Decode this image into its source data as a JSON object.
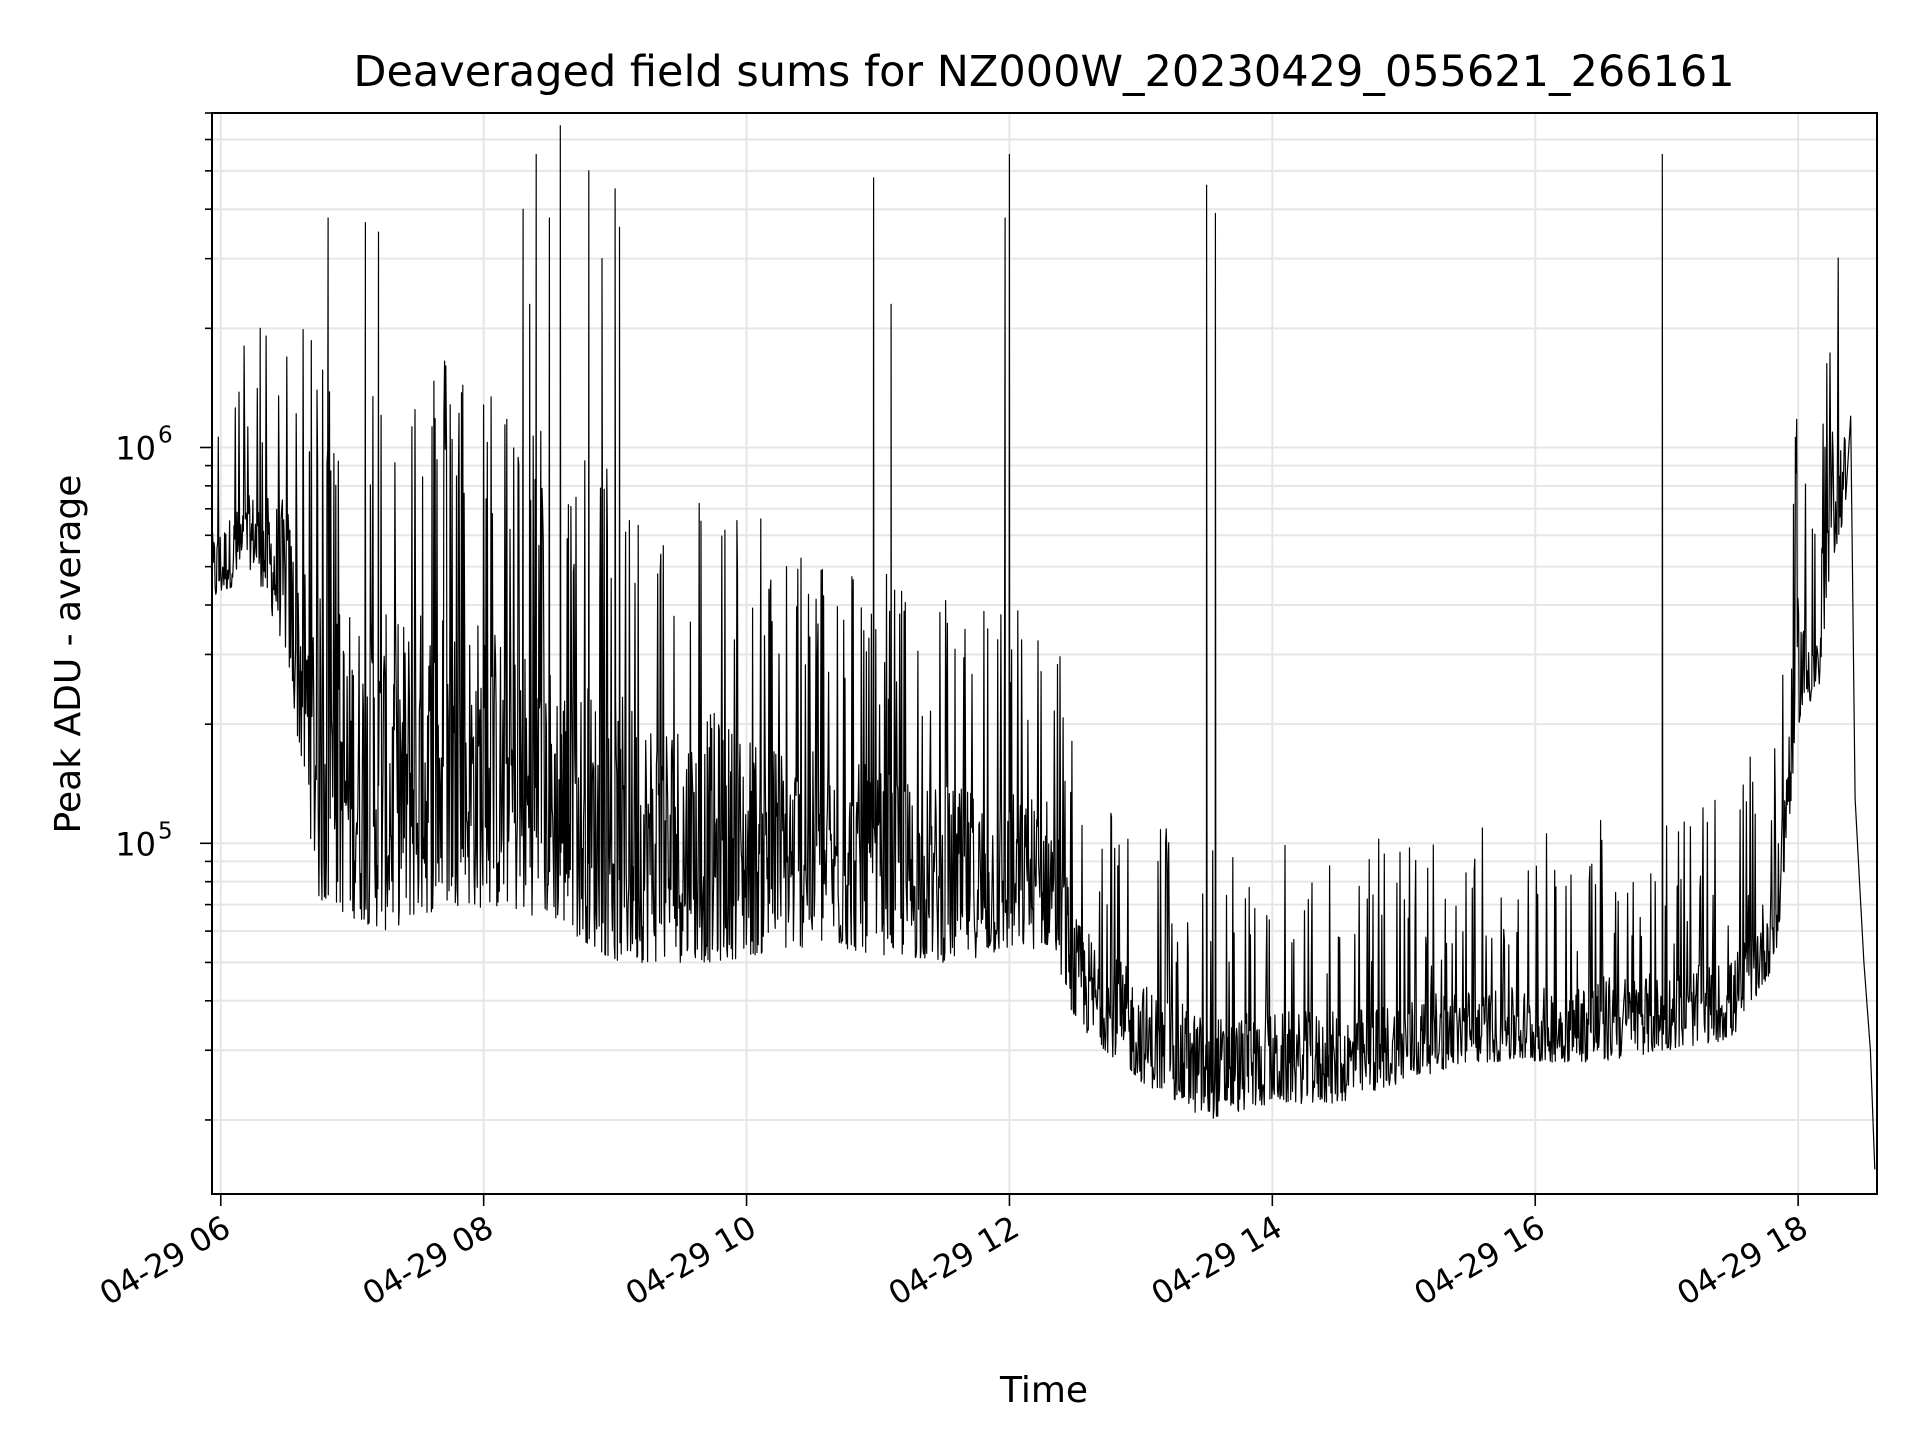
{
  "chart_data": {
    "type": "line",
    "title": "Deaveraged field sums for NZ000W_20230429_055621_266161",
    "xlabel": "Time",
    "ylabel": "Peak ADU - average",
    "yscale": "log",
    "grid": true,
    "xlim": [
      "2023-04-29 05:56",
      "2023-04-29 18:36"
    ],
    "ylim": [
      13000,
      7000000
    ],
    "x_ticks": [
      {
        "value": "2023-04-29 06:00",
        "label": "04-29 06"
      },
      {
        "value": "2023-04-29 08:00",
        "label": "04-29 08"
      },
      {
        "value": "2023-04-29 10:00",
        "label": "04-29 10"
      },
      {
        "value": "2023-04-29 12:00",
        "label": "04-29 12"
      },
      {
        "value": "2023-04-29 14:00",
        "label": "04-29 14"
      },
      {
        "value": "2023-04-29 16:00",
        "label": "04-29 16"
      },
      {
        "value": "2023-04-29 18:00",
        "label": "04-29 18"
      }
    ],
    "y_ticks": [
      {
        "value": 100000,
        "base": "10",
        "exp": "5"
      },
      {
        "value": 1000000,
        "base": "10",
        "exp": "6"
      }
    ],
    "series": [
      {
        "color": "#000000",
        "envelope": [
          {
            "t": "2023-04-29 05:56",
            "low": 400000,
            "high": 700000
          },
          {
            "t": "2023-04-29 06:15",
            "low": 500000,
            "high": 900000
          },
          {
            "t": "2023-04-29 06:30",
            "low": 300000,
            "high": 1000000
          },
          {
            "t": "2023-04-29 06:45",
            "low": 70000,
            "high": 800000
          },
          {
            "t": "2023-04-29 07:15",
            "low": 60000,
            "high": 700000
          },
          {
            "t": "2023-04-29 07:45",
            "low": 70000,
            "high": 800000
          },
          {
            "t": "2023-04-29 08:30",
            "low": 65000,
            "high": 500000
          },
          {
            "t": "2023-04-29 09:00",
            "low": 50000,
            "high": 400000
          },
          {
            "t": "2023-04-29 09:45",
            "low": 50000,
            "high": 350000
          },
          {
            "t": "2023-04-29 10:30",
            "low": 55000,
            "high": 250000
          },
          {
            "t": "2023-04-29 11:30",
            "low": 50000,
            "high": 200000
          },
          {
            "t": "2023-04-29 12:20",
            "low": 55000,
            "high": 180000
          },
          {
            "t": "2023-04-29 12:30",
            "low": 35000,
            "high": 80000
          },
          {
            "t": "2023-04-29 13:00",
            "low": 25000,
            "high": 55000
          },
          {
            "t": "2023-04-29 13:30",
            "low": 20000,
            "high": 45000
          },
          {
            "t": "2023-04-29 14:00",
            "low": 22000,
            "high": 45000
          },
          {
            "t": "2023-04-29 14:30",
            "low": 22000,
            "high": 45000
          },
          {
            "t": "2023-04-29 15:00",
            "low": 25000,
            "high": 48000
          },
          {
            "t": "2023-04-29 15:30",
            "low": 28000,
            "high": 50000
          },
          {
            "t": "2023-04-29 16:00",
            "low": 28000,
            "high": 50000
          },
          {
            "t": "2023-04-29 16:30",
            "low": 28000,
            "high": 55000
          },
          {
            "t": "2023-04-29 17:00",
            "low": 30000,
            "high": 55000
          },
          {
            "t": "2023-04-29 17:30",
            "low": 32000,
            "high": 60000
          },
          {
            "t": "2023-04-29 17:50",
            "low": 50000,
            "high": 100000
          },
          {
            "t": "2023-04-29 18:00",
            "low": 200000,
            "high": 600000
          },
          {
            "t": "2023-04-29 18:10",
            "low": 250000,
            "high": 350000
          },
          {
            "t": "2023-04-29 18:15",
            "low": 500000,
            "high": 1500000
          },
          {
            "t": "2023-04-29 18:22",
            "low": 700000,
            "high": 1300000
          }
        ],
        "tail": [
          {
            "t": "2023-04-29 18:24",
            "y": 1200000
          },
          {
            "t": "2023-04-29 18:26",
            "y": 130000
          },
          {
            "t": "2023-04-29 18:28",
            "y": 80000
          },
          {
            "t": "2023-04-29 18:30",
            "y": 50000
          },
          {
            "t": "2023-04-29 18:33",
            "y": 30000
          },
          {
            "t": "2023-04-29 18:35",
            "y": 15000
          }
        ],
        "spikes": [
          {
            "t": "2023-04-29 06:18",
            "y": 2000000
          },
          {
            "t": "2023-04-29 06:49",
            "y": 3800000
          },
          {
            "t": "2023-04-29 07:06",
            "y": 3700000
          },
          {
            "t": "2023-04-29 07:12",
            "y": 3500000
          },
          {
            "t": "2023-04-29 08:18",
            "y": 4000000
          },
          {
            "t": "2023-04-29 08:21",
            "y": 2300000
          },
          {
            "t": "2023-04-29 08:24",
            "y": 5500000
          },
          {
            "t": "2023-04-29 08:30",
            "y": 3800000
          },
          {
            "t": "2023-04-29 08:35",
            "y": 6500000
          },
          {
            "t": "2023-04-29 08:48",
            "y": 5000000
          },
          {
            "t": "2023-04-29 08:54",
            "y": 3000000
          },
          {
            "t": "2023-04-29 09:00",
            "y": 4500000
          },
          {
            "t": "2023-04-29 09:02",
            "y": 3600000
          },
          {
            "t": "2023-04-29 10:58",
            "y": 4800000
          },
          {
            "t": "2023-04-29 11:06",
            "y": 2300000
          },
          {
            "t": "2023-04-29 11:58",
            "y": 3800000
          },
          {
            "t": "2023-04-29 12:00",
            "y": 5500000
          },
          {
            "t": "2023-04-29 13:30",
            "y": 4600000
          },
          {
            "t": "2023-04-29 13:34",
            "y": 3900000
          },
          {
            "t": "2023-04-29 16:58",
            "y": 5500000
          },
          {
            "t": "2023-04-29 18:24",
            "y": 2800000
          }
        ]
      }
    ]
  }
}
